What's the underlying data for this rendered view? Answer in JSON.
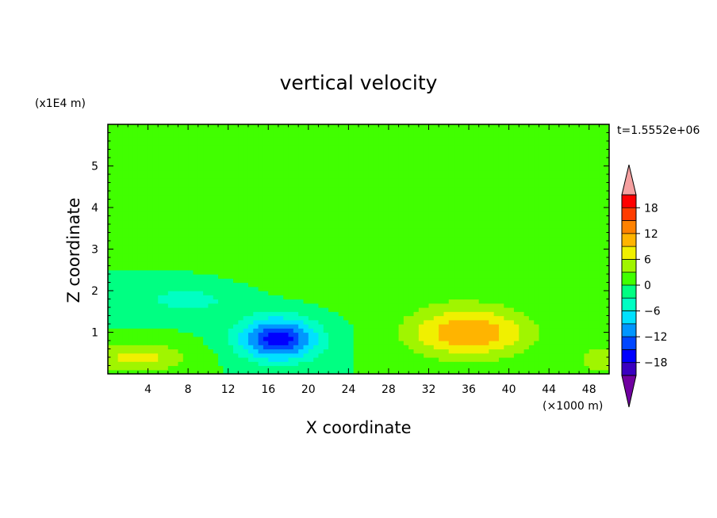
{
  "chart_data": {
    "type": "heatmap",
    "title": "vertical velocity",
    "xlabel": "X coordinate",
    "ylabel": "Z coordinate",
    "x_unit_label": "(×1000 m)",
    "y_unit_label": "(x1E4 m)",
    "time_label": "t=1.5552e+06",
    "xlim": [
      0,
      50
    ],
    "ylim": [
      0,
      6
    ],
    "x_ticks": [
      4,
      8,
      12,
      16,
      20,
      24,
      28,
      32,
      36,
      40,
      44,
      48
    ],
    "y_ticks": [
      1,
      2,
      3,
      4,
      5
    ],
    "colorbar": {
      "levels": [
        -21,
        -18,
        -15,
        -12,
        -9,
        -6,
        -3,
        0,
        3,
        6,
        9,
        12,
        15,
        18,
        21
      ],
      "colors": [
        "#7000a0",
        "#3a00c0",
        "#0000ff",
        "#0046ff",
        "#0096ff",
        "#00e1ff",
        "#00ffc3",
        "#00ff82",
        "#41ff00",
        "#a0f500",
        "#f0f000",
        "#ffb400",
        "#ff8200",
        "#ff3c00",
        "#ff0000",
        "#f5a0a0"
      ],
      "tick_labels": [
        "18",
        "12",
        "6",
        "0",
        "−6",
        "−12",
        "−18"
      ],
      "tick_values": [
        18,
        12,
        6,
        0,
        -6,
        -12,
        -18
      ],
      "extend": "both"
    },
    "features": [
      {
        "x": 3,
        "z": 0.4,
        "value": 7,
        "sx": 5,
        "sz": 0.35
      },
      {
        "x": 17,
        "z": 0.85,
        "value": -17,
        "sx": 3.8,
        "sz": 0.5
      },
      {
        "x": 36,
        "z": 1.0,
        "value": 12,
        "sx": 6,
        "sz": 0.6
      },
      {
        "x": 49,
        "z": 0.35,
        "value": 5,
        "sx": 2,
        "sz": 0.35
      },
      {
        "x": 8,
        "z": 1.8,
        "value": -4,
        "sx": 6,
        "sz": 0.4
      },
      {
        "x": 28,
        "z": 2.3,
        "value": 2,
        "sx": 14,
        "sz": 0.6
      },
      {
        "x": 15,
        "z": 4.2,
        "value": 2,
        "sx": 10,
        "sz": 0.5
      },
      {
        "x": 30,
        "z": 5.6,
        "value": 1.5,
        "sx": 8,
        "sz": 0.3
      },
      {
        "x": 10,
        "z": 5.7,
        "value": 1.5,
        "sx": 6,
        "sz": 0.3
      },
      {
        "x": 45,
        "z": 3.2,
        "value": 1.5,
        "sx": 6,
        "sz": 0.5
      }
    ]
  }
}
